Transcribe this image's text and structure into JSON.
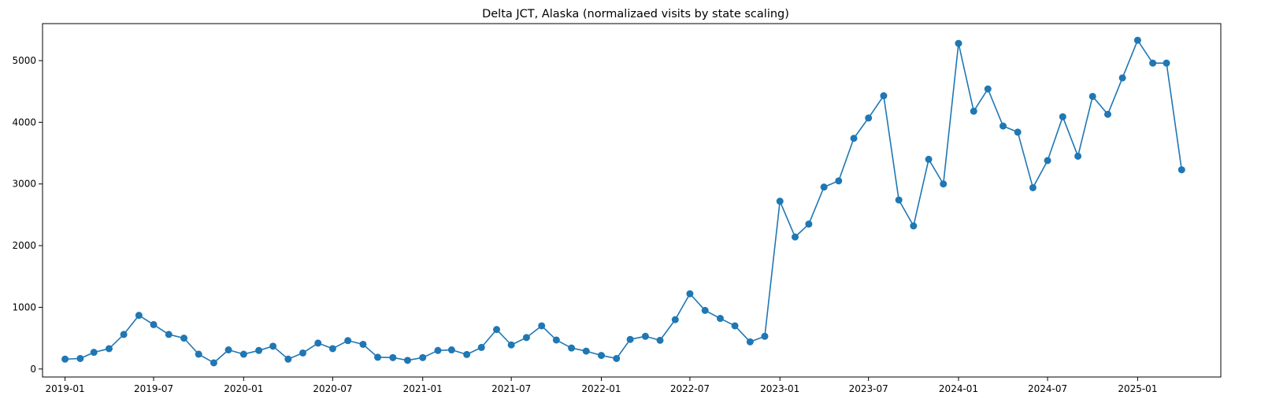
{
  "chart_data": {
    "type": "line",
    "title": "Delta JCT, Alaska (normalizaed visits by state scaling)",
    "xlabel": "",
    "ylabel": "",
    "x_tick_labels": [
      "2019-01",
      "2019-07",
      "2020-01",
      "2020-07",
      "2021-01",
      "2021-07",
      "2022-01",
      "2022-07",
      "2023-01",
      "2023-07",
      "2024-01",
      "2024-07",
      "2025-01"
    ],
    "y_ticks": [
      0,
      1000,
      2000,
      3000,
      4000,
      5000
    ],
    "xlim": [
      "2018-11-16",
      "2025-06-20"
    ],
    "ylim": [
      -130,
      5600
    ],
    "grid": false,
    "legend": "none",
    "series": [
      {
        "color": "#1f77b4",
        "marker": "circle",
        "x": [
          "2019-01-01",
          "2019-02-01",
          "2019-03-01",
          "2019-04-01",
          "2019-05-01",
          "2019-06-01",
          "2019-07-01",
          "2019-08-01",
          "2019-09-01",
          "2019-10-01",
          "2019-11-01",
          "2019-12-01",
          "2020-01-01",
          "2020-02-01",
          "2020-03-01",
          "2020-04-01",
          "2020-05-01",
          "2020-06-01",
          "2020-07-01",
          "2020-08-01",
          "2020-09-01",
          "2020-10-01",
          "2020-11-01",
          "2020-12-01",
          "2021-01-01",
          "2021-02-01",
          "2021-03-01",
          "2021-04-01",
          "2021-05-01",
          "2021-06-01",
          "2021-07-01",
          "2021-08-01",
          "2021-09-01",
          "2021-10-01",
          "2021-11-01",
          "2021-12-01",
          "2022-01-01",
          "2022-02-01",
          "2022-03-01",
          "2022-04-01",
          "2022-05-01",
          "2022-06-01",
          "2022-07-01",
          "2022-08-01",
          "2022-09-01",
          "2022-10-01",
          "2022-11-01",
          "2022-12-01",
          "2023-01-01",
          "2023-02-01",
          "2023-03-01",
          "2023-04-01",
          "2023-05-01",
          "2023-06-01",
          "2023-07-01",
          "2023-08-01",
          "2023-09-01",
          "2023-10-01",
          "2023-11-01",
          "2023-12-01",
          "2024-01-01",
          "2024-02-01",
          "2024-03-01",
          "2024-04-01",
          "2024-05-01",
          "2024-06-01",
          "2024-07-01",
          "2024-08-01",
          "2024-09-01",
          "2024-10-01",
          "2024-11-01",
          "2024-12-01",
          "2025-01-01",
          "2025-02-01",
          "2025-03-01",
          "2025-04-01"
        ],
        "y": [
          160,
          170,
          270,
          330,
          560,
          870,
          720,
          560,
          500,
          240,
          100,
          310,
          240,
          300,
          370,
          160,
          260,
          420,
          330,
          460,
          400,
          190,
          185,
          140,
          185,
          300,
          310,
          235,
          350,
          640,
          390,
          510,
          700,
          470,
          340,
          290,
          220,
          170,
          480,
          530,
          465,
          800,
          1220,
          950,
          820,
          700,
          440,
          530,
          2720,
          2140,
          2350,
          2950,
          3050,
          3740,
          4070,
          4430,
          2740,
          2320,
          3400,
          3000,
          5280,
          4180,
          4540,
          3940,
          3840,
          2940,
          3380,
          4090,
          3450,
          4420,
          4130,
          4720,
          5330,
          4960,
          4960,
          3230
        ]
      }
    ]
  }
}
